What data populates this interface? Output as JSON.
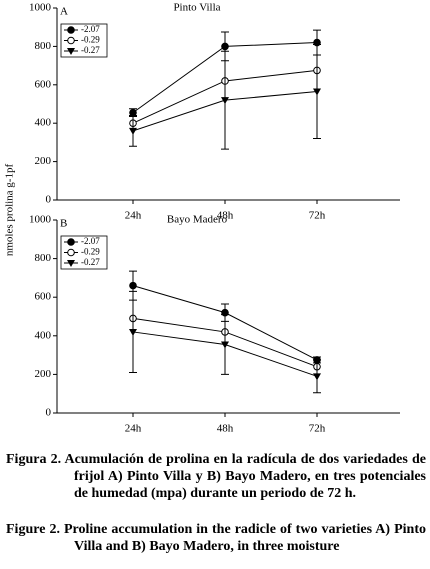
{
  "y_label": "nmoles prolina g-1pf",
  "chart_data": [
    {
      "type": "line",
      "panel": "A",
      "title": "Pinto Villa",
      "categories": [
        "24h",
        "48h",
        "72h"
      ],
      "series": [
        {
          "name": "-2.07",
          "color": "#000000",
          "marker": "filled-circle",
          "values": [
            455,
            800,
            820
          ],
          "errors": [
            20,
            75,
            65
          ]
        },
        {
          "name": "-0.29",
          "color": "#000000",
          "marker": "open-circle",
          "values": [
            400,
            620,
            675
          ],
          "errors": [
            null,
            null,
            null
          ]
        },
        {
          "name": "-0.27",
          "color": "#000000",
          "marker": "filled-triangle-down",
          "values": [
            360,
            520,
            565
          ],
          "errors": [
            80,
            255,
            245
          ]
        }
      ],
      "ylim": [
        0,
        1000
      ],
      "yticks": [
        0,
        200,
        400,
        600,
        800,
        1000
      ],
      "legend": "upper left"
    },
    {
      "type": "line",
      "panel": "B",
      "title": "Bayo Madero",
      "categories": [
        "24h",
        "48h",
        "72h"
      ],
      "series": [
        {
          "name": "-2.07",
          "color": "#000000",
          "marker": "filled-circle",
          "values": [
            660,
            520,
            275
          ],
          "errors": [
            75,
            45,
            15
          ]
        },
        {
          "name": "-0.29",
          "color": "#000000",
          "marker": "open-circle",
          "values": [
            490,
            420,
            240
          ],
          "errors": [
            null,
            null,
            null
          ]
        },
        {
          "name": "-0.27",
          "color": "#000000",
          "marker": "filled-triangle-down",
          "values": [
            420,
            355,
            190
          ],
          "errors": [
            210,
            155,
            85
          ]
        }
      ],
      "ylim": [
        0,
        1000
      ],
      "yticks": [
        0,
        200,
        400,
        600,
        800,
        1000
      ],
      "legend": "upper left"
    }
  ],
  "captions": [
    "Figura 2. Acumulación de prolina en la radícula de dos variedades de frijol A) Pinto Villa y B) Bayo Madero, en tres potenciales de humedad (mpa) durante un periodo de 72 h.",
    "Figure 2. Proline accumulation in the radicle of two varieties A) Pinto Villa and B) Bayo Madero, in three moisture"
  ]
}
